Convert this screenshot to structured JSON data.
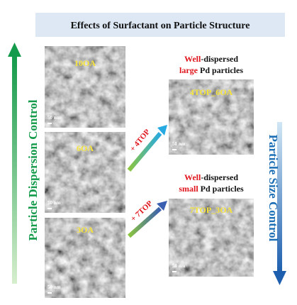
{
  "title": "Effects of Surfactant on Particle Structure",
  "left_label": "Particle Dispersion Control",
  "right_label": "Particle Size Control",
  "panels": [
    {
      "label": "10OA",
      "scale": "50 nm"
    },
    {
      "label": "6OA",
      "scale": "50 nm"
    },
    {
      "label": "3OA",
      "scale": "50 nm"
    }
  ],
  "arrows": [
    "+ 4TOP",
    "+ 7TOP"
  ],
  "results": [
    {
      "line1": [
        "Well",
        "-dispersed"
      ],
      "line2": [
        "large",
        " Pd particles"
      ],
      "label": "4TOP_6OA",
      "scale": "50 nm"
    },
    {
      "line1": [
        "Well",
        "-dispersed"
      ],
      "line2": [
        "small",
        " Pd particles"
      ],
      "label": "7TOP_3OA",
      "scale": "50 nm"
    }
  ]
}
